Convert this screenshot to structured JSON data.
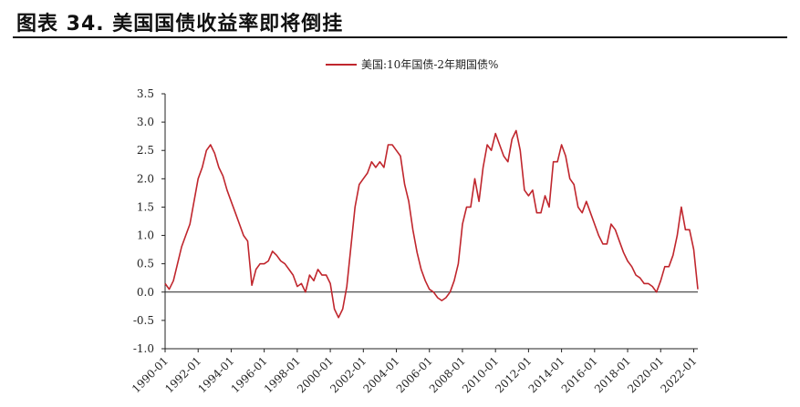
{
  "figure": {
    "title": "图表 34. 美国国债收益率即将倒挂"
  },
  "chart_data": {
    "type": "line",
    "legend": {
      "position": "top-center"
    },
    "series": [
      {
        "name": "美国:10年国债-2年期国债%",
        "color": "#c0262d",
        "points": [
          [
            "1990-01",
            0.15
          ],
          [
            "1990-04",
            0.05
          ],
          [
            "1990-07",
            0.2
          ],
          [
            "1990-10",
            0.5
          ],
          [
            "1991-01",
            0.8
          ],
          [
            "1991-04",
            1.0
          ],
          [
            "1991-07",
            1.2
          ],
          [
            "1991-10",
            1.6
          ],
          [
            "1992-01",
            2.0
          ],
          [
            "1992-04",
            2.2
          ],
          [
            "1992-07",
            2.5
          ],
          [
            "1992-10",
            2.6
          ],
          [
            "1993-01",
            2.45
          ],
          [
            "1993-04",
            2.2
          ],
          [
            "1993-07",
            2.05
          ],
          [
            "1993-10",
            1.8
          ],
          [
            "1994-01",
            1.6
          ],
          [
            "1994-04",
            1.4
          ],
          [
            "1994-07",
            1.2
          ],
          [
            "1994-10",
            1.0
          ],
          [
            "1995-01",
            0.9
          ],
          [
            "1995-04",
            0.12
          ],
          [
            "1995-07",
            0.4
          ],
          [
            "1995-10",
            0.5
          ],
          [
            "1996-01",
            0.5
          ],
          [
            "1996-04",
            0.55
          ],
          [
            "1996-07",
            0.72
          ],
          [
            "1996-10",
            0.65
          ],
          [
            "1997-01",
            0.55
          ],
          [
            "1997-04",
            0.5
          ],
          [
            "1997-07",
            0.4
          ],
          [
            "1997-10",
            0.3
          ],
          [
            "1998-01",
            0.1
          ],
          [
            "1998-04",
            0.15
          ],
          [
            "1998-07",
            0.0
          ],
          [
            "1998-10",
            0.3
          ],
          [
            "1999-01",
            0.2
          ],
          [
            "1999-04",
            0.4
          ],
          [
            "1999-07",
            0.3
          ],
          [
            "1999-10",
            0.3
          ],
          [
            "2000-01",
            0.15
          ],
          [
            "2000-04",
            -0.3
          ],
          [
            "2000-07",
            -0.45
          ],
          [
            "2000-10",
            -0.3
          ],
          [
            "2001-01",
            0.1
          ],
          [
            "2001-04",
            0.8
          ],
          [
            "2001-07",
            1.5
          ],
          [
            "2001-10",
            1.9
          ],
          [
            "2002-01",
            2.0
          ],
          [
            "2002-04",
            2.1
          ],
          [
            "2002-07",
            2.3
          ],
          [
            "2002-10",
            2.2
          ],
          [
            "2003-01",
            2.3
          ],
          [
            "2003-04",
            2.2
          ],
          [
            "2003-07",
            2.6
          ],
          [
            "2003-10",
            2.6
          ],
          [
            "2004-01",
            2.5
          ],
          [
            "2004-04",
            2.4
          ],
          [
            "2004-07",
            1.9
          ],
          [
            "2004-10",
            1.6
          ],
          [
            "2005-01",
            1.1
          ],
          [
            "2005-04",
            0.7
          ],
          [
            "2005-07",
            0.4
          ],
          [
            "2005-10",
            0.2
          ],
          [
            "2006-01",
            0.05
          ],
          [
            "2006-04",
            0.0
          ],
          [
            "2006-07",
            -0.1
          ],
          [
            "2006-10",
            -0.15
          ],
          [
            "2007-01",
            -0.1
          ],
          [
            "2007-04",
            0.0
          ],
          [
            "2007-07",
            0.2
          ],
          [
            "2007-10",
            0.5
          ],
          [
            "2008-01",
            1.2
          ],
          [
            "2008-04",
            1.5
          ],
          [
            "2008-07",
            1.5
          ],
          [
            "2008-10",
            2.0
          ],
          [
            "2009-01",
            1.6
          ],
          [
            "2009-04",
            2.2
          ],
          [
            "2009-07",
            2.6
          ],
          [
            "2009-10",
            2.5
          ],
          [
            "2010-01",
            2.8
          ],
          [
            "2010-04",
            2.6
          ],
          [
            "2010-07",
            2.4
          ],
          [
            "2010-10",
            2.3
          ],
          [
            "2011-01",
            2.7
          ],
          [
            "2011-04",
            2.85
          ],
          [
            "2011-07",
            2.5
          ],
          [
            "2011-10",
            1.8
          ],
          [
            "2012-01",
            1.7
          ],
          [
            "2012-04",
            1.8
          ],
          [
            "2012-07",
            1.4
          ],
          [
            "2012-10",
            1.4
          ],
          [
            "2013-01",
            1.7
          ],
          [
            "2013-04",
            1.5
          ],
          [
            "2013-07",
            2.3
          ],
          [
            "2013-10",
            2.3
          ],
          [
            "2014-01",
            2.6
          ],
          [
            "2014-04",
            2.4
          ],
          [
            "2014-07",
            2.0
          ],
          [
            "2014-10",
            1.9
          ],
          [
            "2015-01",
            1.5
          ],
          [
            "2015-04",
            1.4
          ],
          [
            "2015-07",
            1.6
          ],
          [
            "2015-10",
            1.4
          ],
          [
            "2016-01",
            1.2
          ],
          [
            "2016-04",
            1.0
          ],
          [
            "2016-07",
            0.85
          ],
          [
            "2016-10",
            0.85
          ],
          [
            "2017-01",
            1.2
          ],
          [
            "2017-04",
            1.1
          ],
          [
            "2017-07",
            0.9
          ],
          [
            "2017-10",
            0.7
          ],
          [
            "2018-01",
            0.55
          ],
          [
            "2018-04",
            0.45
          ],
          [
            "2018-07",
            0.3
          ],
          [
            "2018-10",
            0.25
          ],
          [
            "2019-01",
            0.15
          ],
          [
            "2019-04",
            0.15
          ],
          [
            "2019-07",
            0.1
          ],
          [
            "2019-10",
            0.0
          ],
          [
            "2020-01",
            0.2
          ],
          [
            "2020-04",
            0.45
          ],
          [
            "2020-07",
            0.45
          ],
          [
            "2020-10",
            0.65
          ],
          [
            "2021-01",
            1.0
          ],
          [
            "2021-04",
            1.5
          ],
          [
            "2021-07",
            1.1
          ],
          [
            "2021-10",
            1.1
          ],
          [
            "2022-01",
            0.75
          ],
          [
            "2022-04",
            0.05
          ]
        ]
      }
    ],
    "x_ticks": [
      "1990-01",
      "1992-01",
      "1994-01",
      "1996-01",
      "1998-01",
      "2000-01",
      "2002-01",
      "2004-01",
      "2006-01",
      "2008-01",
      "2010-01",
      "2012-01",
      "2014-01",
      "2016-01",
      "2018-01",
      "2020-01",
      "2022-01"
    ],
    "y_ticks": [
      "3.5",
      "3.0",
      "2.5",
      "2.0",
      "1.5",
      "1.0",
      "0.5",
      "0.0",
      "-0.5",
      "-1.0"
    ],
    "ylim": [
      -1.0,
      3.5
    ],
    "xlim": [
      "1990-01",
      "2022-04"
    ],
    "grid": false,
    "zero_line": true
  }
}
